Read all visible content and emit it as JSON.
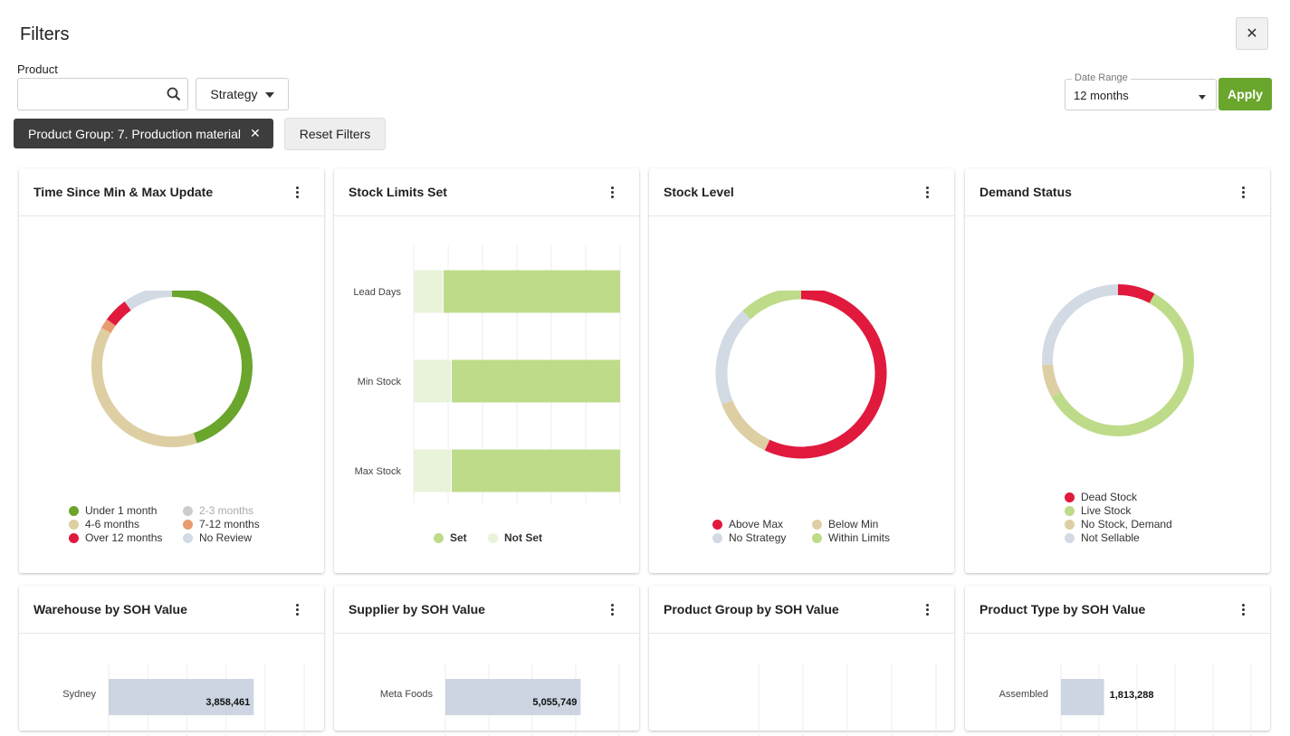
{
  "header": {
    "title": "Filters",
    "close_label": "✕"
  },
  "filters": {
    "product_label": "Product",
    "product_value": "",
    "strategy_label": "Strategy",
    "date_range_label": "Date Range",
    "date_range_value": "12 months",
    "apply_label": "Apply",
    "chip_label": "Product Group: 7. Production material",
    "reset_label": "Reset Filters"
  },
  "colors": {
    "green": "#6aa52c",
    "light_green": "#bedb8a",
    "pale_green": "#e9f3da",
    "tan": "#ddcfa3",
    "red": "#e0193d",
    "orange": "#e89b6f",
    "gray": "#cccccc",
    "blue_gray": "#d2dae4",
    "bar_blue": "#ccd5e1"
  },
  "cards": {
    "time_since": {
      "title": "Time Since Min & Max Update",
      "legend": [
        "Under 1 month",
        "2-3 months",
        "4-6 months",
        "7-12 months",
        "Over 12 months",
        "No Review"
      ]
    },
    "stock_limits": {
      "title": "Stock Limits Set",
      "categories": [
        "Lead Days",
        "Min Stock",
        "Max Stock"
      ],
      "legend": [
        "Set",
        "Not Set"
      ]
    },
    "stock_level": {
      "title": "Stock Level",
      "legend": [
        "Above Max",
        "Below Min",
        "No Strategy",
        "Within Limits"
      ]
    },
    "demand_status": {
      "title": "Demand Status",
      "legend": [
        "Dead Stock",
        "Live Stock",
        "No Stock, Demand",
        "Not Sellable"
      ]
    },
    "warehouse": {
      "title": "Warehouse by SOH Value",
      "label": "Sydney",
      "value": "3,858,461"
    },
    "supplier": {
      "title": "Supplier by SOH Value",
      "label": "Meta Foods",
      "value": "5,055,749"
    },
    "product_group": {
      "title": "Product Group by SOH Value"
    },
    "product_type": {
      "title": "Product Type by SOH Value",
      "label": "Assembled",
      "value": "1,813,288"
    }
  },
  "chart_data": [
    {
      "type": "pie",
      "title": "Time Since Min & Max Update",
      "labels": [
        "Under 1 month",
        "2-3 months",
        "4-6 months",
        "7-12 months",
        "Over 12 months",
        "No Review"
      ],
      "values": [
        45,
        0,
        38,
        2,
        5,
        10
      ]
    },
    {
      "type": "bar",
      "title": "Stock Limits Set",
      "orientation": "horizontal",
      "stacked": true,
      "categories": [
        "Lead Days",
        "Min Stock",
        "Max Stock"
      ],
      "series": [
        {
          "name": "Not Set",
          "values": [
            14,
            18,
            18
          ]
        },
        {
          "name": "Set",
          "values": [
            86,
            82,
            82
          ]
        }
      ]
    },
    {
      "type": "pie",
      "title": "Stock Level",
      "labels": [
        "Above Max",
        "Below Min",
        "No Strategy",
        "Within Limits"
      ],
      "values": [
        57,
        12,
        19,
        12
      ]
    },
    {
      "type": "pie",
      "title": "Demand Status",
      "labels": [
        "Dead Stock",
        "Live Stock",
        "No Stock, Demand",
        "Not Sellable"
      ],
      "values": [
        8,
        59,
        7,
        26
      ]
    },
    {
      "type": "bar",
      "title": "Warehouse by SOH Value",
      "orientation": "horizontal",
      "categories": [
        "Sydney"
      ],
      "values": [
        3858461
      ],
      "xlim": [
        0,
        5200000
      ]
    },
    {
      "type": "bar",
      "title": "Supplier by SOH Value",
      "orientation": "horizontal",
      "categories": [
        "Meta Foods"
      ],
      "values": [
        5055749
      ],
      "xlim": [
        0,
        6500000
      ]
    },
    {
      "type": "bar",
      "title": "Product Type by SOH Value",
      "orientation": "horizontal",
      "categories": [
        "Assembled"
      ],
      "values": [
        1813288
      ],
      "xlim": [
        0,
        8000000
      ]
    }
  ]
}
